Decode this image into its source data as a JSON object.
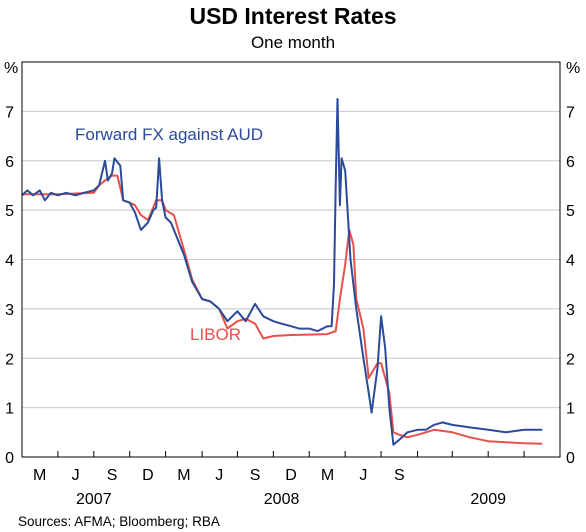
{
  "chart_data": {
    "type": "line",
    "title": "USD Interest Rates",
    "subtitle": "One month",
    "unit_left": "%",
    "unit_right": "%",
    "ylim": [
      0,
      8
    ],
    "yticks": [
      0,
      1,
      2,
      3,
      4,
      5,
      6,
      7
    ],
    "xlim": [
      "2007-04-01",
      "2009-10-01"
    ],
    "x_tick_marks": [
      "2007-04-01",
      "2007-06-01",
      "2007-08-01",
      "2007-10-01",
      "2007-12-01",
      "2008-02-01",
      "2008-04-01",
      "2008-06-01",
      "2008-08-01",
      "2008-10-01",
      "2008-12-01",
      "2009-02-01",
      "2009-04-01",
      "2009-06-01",
      "2009-08-01",
      "2009-10-01"
    ],
    "x_labels": [
      {
        "date": "2007-05-01",
        "label": "M"
      },
      {
        "date": "2007-07-01",
        "label": "J"
      },
      {
        "date": "2007-09-01",
        "label": "S"
      },
      {
        "date": "2007-11-01",
        "label": "D"
      },
      {
        "date": "2008-01-01",
        "label": "M"
      },
      {
        "date": "2008-03-01",
        "label": "J"
      },
      {
        "date": "2008-05-01",
        "label": "S"
      },
      {
        "date": "2008-07-01",
        "label": "D"
      },
      {
        "date": "2008-09-01",
        "label": "M"
      },
      {
        "date": "2008-11-01",
        "label": "J"
      },
      {
        "date": "2009-01-01",
        "label": "S"
      }
    ],
    "year_labels": [
      {
        "date": "2007-08-01",
        "label": "2007"
      },
      {
        "date": "2008-06-15",
        "label": "2008"
      },
      {
        "date": "2009-06-01",
        "label": "2009"
      }
    ],
    "grid": "horizontal",
    "series": [
      {
        "name": "Forward FX against AUD",
        "color": "#2a4a9a",
        "points": [
          [
            "2007-04-01",
            5.3
          ],
          [
            "2007-04-10",
            5.4
          ],
          [
            "2007-04-20",
            5.3
          ],
          [
            "2007-05-01",
            5.4
          ],
          [
            "2007-05-10",
            5.2
          ],
          [
            "2007-05-20",
            5.35
          ],
          [
            "2007-06-01",
            5.3
          ],
          [
            "2007-06-15",
            5.35
          ],
          [
            "2007-07-01",
            5.3
          ],
          [
            "2007-07-15",
            5.35
          ],
          [
            "2007-08-01",
            5.4
          ],
          [
            "2007-08-10",
            5.5
          ],
          [
            "2007-08-20",
            6.0
          ],
          [
            "2007-08-25",
            5.6
          ],
          [
            "2007-09-01",
            5.75
          ],
          [
            "2007-09-05",
            6.05
          ],
          [
            "2007-09-15",
            5.9
          ],
          [
            "2007-09-20",
            5.2
          ],
          [
            "2007-10-01",
            5.15
          ],
          [
            "2007-10-10",
            4.95
          ],
          [
            "2007-10-20",
            4.6
          ],
          [
            "2007-11-01",
            4.75
          ],
          [
            "2007-11-10",
            5.0
          ],
          [
            "2007-11-15",
            5.05
          ],
          [
            "2007-11-20",
            6.05
          ],
          [
            "2007-11-25",
            5.2
          ],
          [
            "2007-12-01",
            4.85
          ],
          [
            "2007-12-10",
            4.75
          ],
          [
            "2008-01-01",
            4.1
          ],
          [
            "2008-01-15",
            3.55
          ],
          [
            "2008-02-01",
            3.2
          ],
          [
            "2008-02-15",
            3.15
          ],
          [
            "2008-03-01",
            3.0
          ],
          [
            "2008-03-15",
            2.75
          ],
          [
            "2008-04-01",
            2.95
          ],
          [
            "2008-04-15",
            2.75
          ],
          [
            "2008-05-01",
            3.1
          ],
          [
            "2008-05-15",
            2.85
          ],
          [
            "2008-06-01",
            2.75
          ],
          [
            "2008-06-15",
            2.7
          ],
          [
            "2008-07-01",
            2.65
          ],
          [
            "2008-07-15",
            2.6
          ],
          [
            "2008-08-01",
            2.6
          ],
          [
            "2008-08-15",
            2.55
          ],
          [
            "2008-09-01",
            2.65
          ],
          [
            "2008-09-08",
            2.65
          ],
          [
            "2008-09-12",
            3.5
          ],
          [
            "2008-09-15",
            5.5
          ],
          [
            "2008-09-18",
            7.25
          ],
          [
            "2008-09-22",
            5.1
          ],
          [
            "2008-09-25",
            6.05
          ],
          [
            "2008-10-01",
            5.8
          ],
          [
            "2008-10-10",
            4.0
          ],
          [
            "2008-10-20",
            3.0
          ],
          [
            "2008-11-01",
            2.0
          ],
          [
            "2008-11-10",
            1.3
          ],
          [
            "2008-11-15",
            0.9
          ],
          [
            "2008-11-25",
            1.8
          ],
          [
            "2008-12-01",
            2.85
          ],
          [
            "2008-12-08",
            2.2
          ],
          [
            "2008-12-15",
            1.0
          ],
          [
            "2008-12-22",
            0.25
          ],
          [
            "2009-01-01",
            0.35
          ],
          [
            "2009-01-15",
            0.5
          ],
          [
            "2009-02-01",
            0.55
          ],
          [
            "2009-02-15",
            0.55
          ],
          [
            "2009-03-01",
            0.65
          ],
          [
            "2009-03-15",
            0.7
          ],
          [
            "2009-04-01",
            0.65
          ],
          [
            "2009-05-01",
            0.6
          ],
          [
            "2009-06-01",
            0.55
          ],
          [
            "2009-07-01",
            0.5
          ],
          [
            "2009-08-01",
            0.55
          ],
          [
            "2009-09-01",
            0.55
          ]
        ]
      },
      {
        "name": "LIBOR",
        "color": "#e8504a",
        "points": [
          [
            "2007-04-01",
            5.32
          ],
          [
            "2007-06-01",
            5.32
          ],
          [
            "2007-08-01",
            5.35
          ],
          [
            "2007-08-10",
            5.5
          ],
          [
            "2007-08-20",
            5.6
          ],
          [
            "2007-09-01",
            5.7
          ],
          [
            "2007-09-10",
            5.7
          ],
          [
            "2007-09-20",
            5.2
          ],
          [
            "2007-10-01",
            5.15
          ],
          [
            "2007-10-10",
            5.1
          ],
          [
            "2007-10-20",
            4.9
          ],
          [
            "2007-11-01",
            4.8
          ],
          [
            "2007-11-15",
            5.2
          ],
          [
            "2007-11-25",
            5.2
          ],
          [
            "2007-12-01",
            5.0
          ],
          [
            "2007-12-15",
            4.9
          ],
          [
            "2008-01-01",
            4.2
          ],
          [
            "2008-01-15",
            3.6
          ],
          [
            "2008-02-01",
            3.2
          ],
          [
            "2008-02-15",
            3.15
          ],
          [
            "2008-03-01",
            3.0
          ],
          [
            "2008-03-15",
            2.6
          ],
          [
            "2008-04-01",
            2.75
          ],
          [
            "2008-04-15",
            2.8
          ],
          [
            "2008-05-01",
            2.7
          ],
          [
            "2008-05-15",
            2.4
          ],
          [
            "2008-06-01",
            2.45
          ],
          [
            "2008-07-01",
            2.47
          ],
          [
            "2008-08-01",
            2.48
          ],
          [
            "2008-09-01",
            2.49
          ],
          [
            "2008-09-15",
            2.55
          ],
          [
            "2008-09-22",
            3.2
          ],
          [
            "2008-10-01",
            3.9
          ],
          [
            "2008-10-08",
            4.6
          ],
          [
            "2008-10-15",
            4.3
          ],
          [
            "2008-10-20",
            3.2
          ],
          [
            "2008-11-01",
            2.6
          ],
          [
            "2008-11-10",
            1.6
          ],
          [
            "2008-11-25",
            1.9
          ],
          [
            "2008-12-01",
            1.9
          ],
          [
            "2008-12-15",
            1.3
          ],
          [
            "2008-12-22",
            0.5
          ],
          [
            "2009-01-01",
            0.45
          ],
          [
            "2009-01-15",
            0.4
          ],
          [
            "2009-02-01",
            0.45
          ],
          [
            "2009-03-01",
            0.55
          ],
          [
            "2009-04-01",
            0.5
          ],
          [
            "2009-05-01",
            0.4
          ],
          [
            "2009-06-01",
            0.32
          ],
          [
            "2009-07-01",
            0.3
          ],
          [
            "2009-08-01",
            0.28
          ],
          [
            "2009-09-01",
            0.27
          ]
        ]
      }
    ],
    "annotations": [
      {
        "text": "Forward FX against AUD",
        "series": "Forward FX against AUD"
      },
      {
        "text": "LIBOR",
        "series": "LIBOR"
      }
    ],
    "source": "Sources: AFMA; Bloomberg; RBA"
  }
}
